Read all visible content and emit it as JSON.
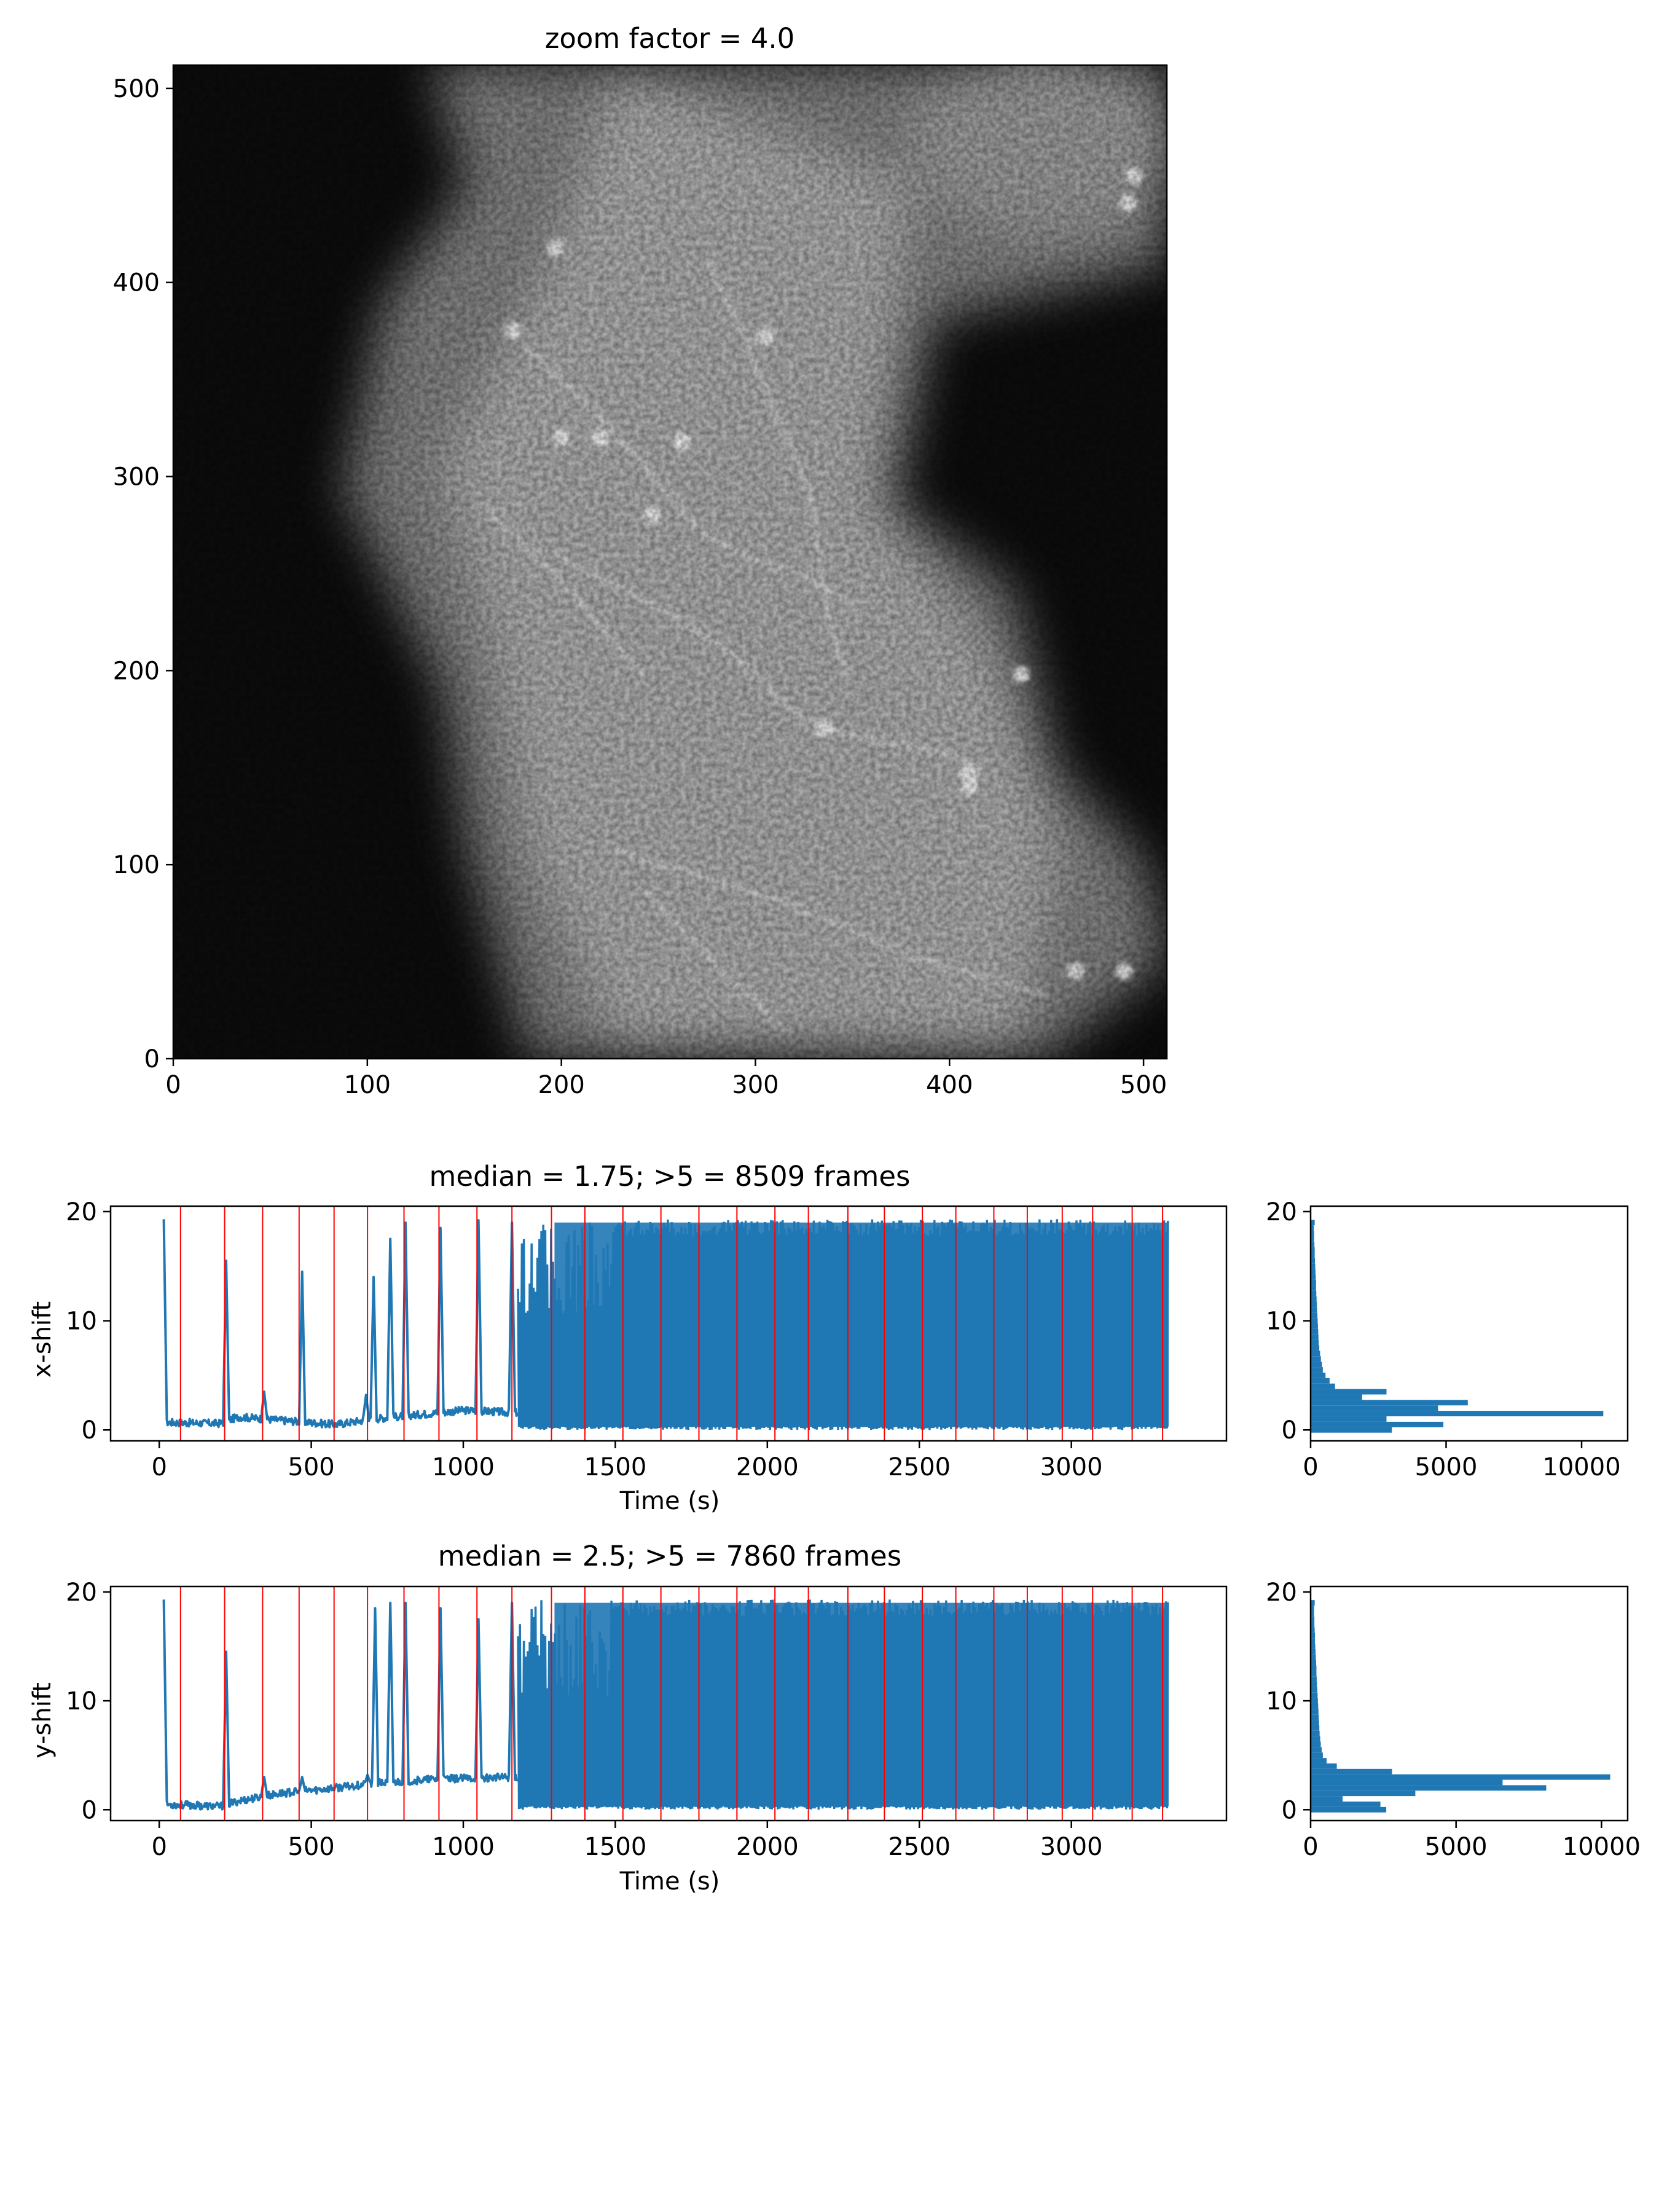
{
  "colors": {
    "series": "#1f77b4",
    "marker": "#ff0000",
    "axis": "#000000",
    "background": "#ffffff"
  },
  "chart_data": [
    {
      "id": "image",
      "type": "heatmap",
      "title": "zoom factor = 4.0",
      "colormap": "gray",
      "xlim": [
        0,
        512
      ],
      "ylim": [
        0,
        512
      ],
      "xticks": [
        0,
        100,
        200,
        300,
        400,
        500
      ],
      "yticks": [
        0,
        100,
        200,
        300,
        400,
        500
      ],
      "bright_spots": [
        [
          465,
          45
        ],
        [
          490,
          45
        ],
        [
          437,
          198
        ],
        [
          410,
          147
        ],
        [
          410,
          140
        ],
        [
          495,
          455
        ],
        [
          492,
          441
        ],
        [
          197,
          418
        ],
        [
          262,
          318
        ],
        [
          305,
          372
        ],
        [
          247,
          280
        ],
        [
          220,
          320
        ],
        [
          175,
          375
        ],
        [
          335,
          170
        ],
        [
          200,
          320
        ]
      ]
    },
    {
      "id": "x-trace",
      "type": "line",
      "title": "median = 1.75; >5 = 8509 frames",
      "xlabel": "Time (s)",
      "ylabel": "x-shift",
      "xlim": [
        -160,
        3510
      ],
      "ylim": [
        -1,
        20.5
      ],
      "xticks": [
        0,
        500,
        1000,
        1500,
        2000,
        2500,
        3000
      ],
      "yticks": [
        0,
        10,
        20
      ],
      "segment_boundaries": [
        70,
        215,
        340,
        460,
        575,
        685,
        805,
        920,
        1045,
        1160,
        1290,
        1400,
        1525,
        1650,
        1775,
        1900,
        2025,
        2135,
        2265,
        2385,
        2510,
        2620,
        2745,
        2855,
        2970,
        3070,
        3200,
        3300
      ],
      "baseline": [
        [
          15,
          0.7
        ],
        [
          200,
          0.6
        ],
        [
          260,
          1.2
        ],
        [
          580,
          0.5
        ],
        [
          700,
          1.0
        ],
        [
          1000,
          1.8
        ],
        [
          1160,
          1.6
        ]
      ],
      "spikes": [
        [
          15,
          19.3
        ],
        [
          220,
          15.5
        ],
        [
          345,
          3.5
        ],
        [
          470,
          14.5
        ],
        [
          680,
          3.2
        ],
        [
          705,
          14
        ],
        [
          760,
          17.5
        ],
        [
          810,
          19
        ],
        [
          925,
          18.5
        ],
        [
          1050,
          19.2
        ],
        [
          1160,
          19
        ]
      ],
      "oscillation": {
        "start": 1180,
        "end": 3320,
        "min": 0,
        "max": 19.3
      }
    },
    {
      "id": "x-hist",
      "type": "bar",
      "orientation": "horizontal",
      "xlim": [
        0,
        11700
      ],
      "ylim": [
        -1,
        20.5
      ],
      "xticks": [
        0,
        5000,
        10000
      ],
      "yticks": [
        0,
        10,
        20
      ],
      "bin_centers": [
        0,
        0.5,
        1,
        1.5,
        2,
        2.5,
        3,
        3.5,
        4,
        4.5,
        5,
        5.5,
        6,
        6.5,
        7,
        7.5,
        8,
        8.5,
        9,
        9.5,
        10,
        10.5,
        11,
        11.5,
        12,
        12.5,
        13,
        13.5,
        14,
        14.5,
        15,
        15.5,
        16,
        16.5,
        17,
        17.5,
        18,
        18.5,
        19
      ],
      "counts": [
        3000,
        4900,
        2800,
        10800,
        4700,
        5800,
        1900,
        2800,
        900,
        700,
        550,
        450,
        420,
        380,
        350,
        320,
        300,
        290,
        280,
        270,
        260,
        250,
        240,
        230,
        220,
        210,
        200,
        200,
        190,
        180,
        170,
        160,
        150,
        150,
        140,
        130,
        130,
        120,
        150
      ]
    },
    {
      "id": "y-trace",
      "type": "line",
      "title": "median = 2.5; >5 = 7860 frames",
      "xlabel": "Time (s)",
      "ylabel": "y-shift",
      "xlim": [
        -160,
        3510
      ],
      "ylim": [
        -1,
        20.5
      ],
      "xticks": [
        0,
        500,
        1000,
        1500,
        2000,
        2500,
        3000
      ],
      "yticks": [
        0,
        10,
        20
      ],
      "segment_boundaries": [
        70,
        215,
        340,
        460,
        575,
        685,
        805,
        920,
        1045,
        1160,
        1290,
        1400,
        1525,
        1650,
        1775,
        1900,
        2025,
        2135,
        2265,
        2385,
        2510,
        2620,
        2745,
        2855,
        2970,
        3070,
        3200,
        3300
      ],
      "baseline": [
        [
          15,
          0.5
        ],
        [
          200,
          0.3
        ],
        [
          260,
          0.8
        ],
        [
          400,
          1.5
        ],
        [
          580,
          2.0
        ],
        [
          700,
          2.4
        ],
        [
          900,
          2.8
        ],
        [
          1160,
          3.0
        ]
      ],
      "spikes": [
        [
          15,
          19.3
        ],
        [
          220,
          14.5
        ],
        [
          345,
          3
        ],
        [
          470,
          3
        ],
        [
          685,
          3.2
        ],
        [
          710,
          18.5
        ],
        [
          760,
          19
        ],
        [
          810,
          19
        ],
        [
          925,
          18.5
        ],
        [
          1050,
          17.5
        ],
        [
          1160,
          19
        ]
      ],
      "oscillation": {
        "start": 1180,
        "end": 3320,
        "min": 0,
        "max": 19.3
      }
    },
    {
      "id": "y-hist",
      "type": "bar",
      "orientation": "horizontal",
      "xlim": [
        0,
        10900
      ],
      "ylim": [
        -1,
        20.5
      ],
      "xticks": [
        0,
        5000,
        10000
      ],
      "yticks": [
        0,
        10,
        20
      ],
      "bin_centers": [
        0,
        0.5,
        1,
        1.5,
        2,
        2.5,
        3,
        3.5,
        4,
        4.5,
        5,
        5.5,
        6,
        6.5,
        7,
        7.5,
        8,
        8.5,
        9,
        9.5,
        10,
        10.5,
        11,
        11.5,
        12,
        12.5,
        13,
        13.5,
        14,
        14.5,
        15,
        15.5,
        16,
        16.5,
        17,
        17.5,
        18,
        18.5,
        19
      ],
      "counts": [
        2600,
        2400,
        1100,
        3600,
        8100,
        6600,
        10300,
        2800,
        900,
        550,
        420,
        380,
        350,
        330,
        310,
        300,
        290,
        280,
        270,
        260,
        250,
        240,
        230,
        220,
        210,
        200,
        200,
        190,
        180,
        170,
        160,
        150,
        150,
        140,
        130,
        130,
        120,
        120,
        140
      ]
    }
  ]
}
